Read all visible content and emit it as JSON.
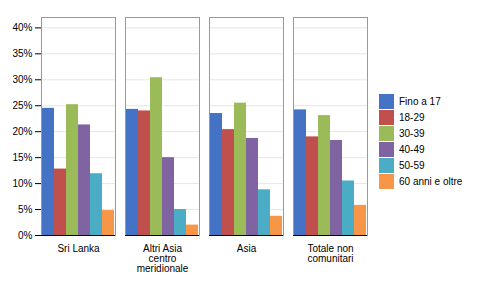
{
  "chart_data": {
    "type": "bar",
    "categories": [
      "Sri Lanka",
      "Altri Asia\ncentro\nmeridionale",
      "Asia",
      "Totale non\ncomunitari"
    ],
    "series": [
      {
        "name": "Fino a 17",
        "color": "#4472C4",
        "values": [
          0.245,
          0.243,
          0.235,
          0.242
        ]
      },
      {
        "name": "18-29",
        "color": "#C0504D",
        "values": [
          0.128,
          0.24,
          0.204,
          0.19
        ]
      },
      {
        "name": "30-39",
        "color": "#9BBB59",
        "values": [
          0.252,
          0.304,
          0.255,
          0.231
        ]
      },
      {
        "name": "40-49",
        "color": "#8064A2",
        "values": [
          0.213,
          0.15,
          0.187,
          0.183
        ]
      },
      {
        "name": "50-59",
        "color": "#4BACC6",
        "values": [
          0.119,
          0.05,
          0.088,
          0.105
        ]
      },
      {
        "name": "60 anni e oltre",
        "color": "#F79646",
        "values": [
          0.048,
          0.02,
          0.037,
          0.058
        ]
      }
    ],
    "ylim": [
      0,
      0.42
    ],
    "yticks": [
      {
        "value": 0.0,
        "label": "0%"
      },
      {
        "value": 0.05,
        "label": "5%"
      },
      {
        "value": 0.1,
        "label": "10%"
      },
      {
        "value": 0.15,
        "label": "15%"
      },
      {
        "value": 0.2,
        "label": "20%"
      },
      {
        "value": 0.25,
        "label": "25%"
      },
      {
        "value": 0.3,
        "label": "30%"
      },
      {
        "value": 0.35,
        "label": "35%"
      },
      {
        "value": 0.4,
        "label": "40%"
      }
    ],
    "grid": true,
    "legend": "right"
  }
}
